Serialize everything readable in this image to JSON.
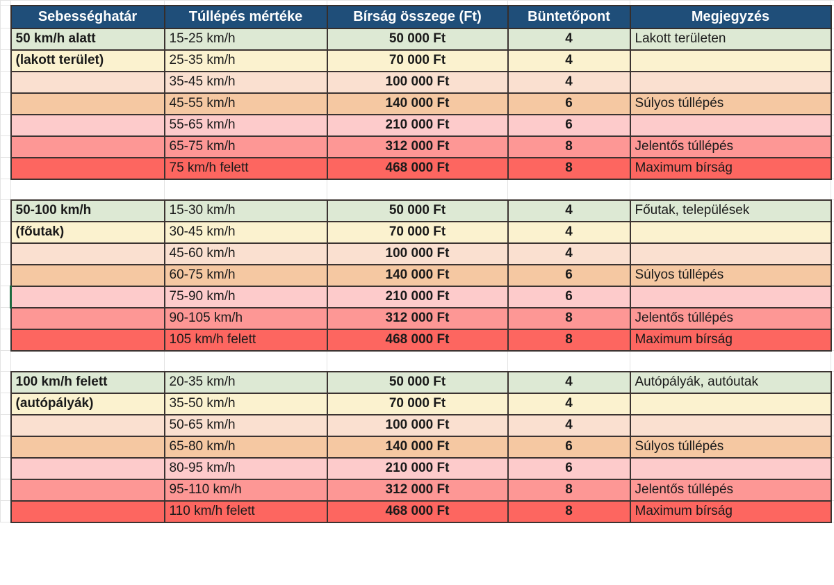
{
  "table": {
    "columns": [
      {
        "label": "Sebességhatár"
      },
      {
        "label": "Túllépés mértéke"
      },
      {
        "label": "Bírság összege (Ft)"
      },
      {
        "label": "Büntetőpont"
      },
      {
        "label": "Megjegyzés"
      }
    ],
    "palette": {
      "header_bg": "#1F4E79",
      "header_text": "#FFFFFF",
      "row_colors": [
        "#DDE9D4",
        "#FBF2CF",
        "#FAE0D0",
        "#F5C8A2",
        "#FDCBCB",
        "#FD9795",
        "#FD6660"
      ],
      "border_dark": "#3B3331",
      "gridline": "#E3E3E3",
      "selection_green": "#1E6B41"
    },
    "sections": [
      {
        "limit_line1": "50 km/h alatt",
        "limit_line2": "(lakott terület)",
        "rows": [
          {
            "range": "15-25 km/h",
            "fine": "50 000 Ft",
            "points": "4",
            "note": "Lakott területen"
          },
          {
            "range": "25-35 km/h",
            "fine": "70 000 Ft",
            "points": "4",
            "note": ""
          },
          {
            "range": "35-45 km/h",
            "fine": "100 000 Ft",
            "points": "4",
            "note": ""
          },
          {
            "range": "45-55 km/h",
            "fine": "140 000 Ft",
            "points": "6",
            "note": "Súlyos túllépés"
          },
          {
            "range": "55-65 km/h",
            "fine": "210 000 Ft",
            "points": "6",
            "note": ""
          },
          {
            "range": "65-75 km/h",
            "fine": "312 000 Ft",
            "points": "8",
            "note": "Jelentős túllépés"
          },
          {
            "range": "75 km/h felett",
            "fine": "468 000 Ft",
            "points": "8",
            "note": "Maximum bírság"
          }
        ]
      },
      {
        "limit_line1": "50-100 km/h",
        "limit_line2": "(főutak)",
        "rows": [
          {
            "range": "15-30 km/h",
            "fine": "50 000 Ft",
            "points": "4",
            "note": "Főutak, települések"
          },
          {
            "range": "30-45 km/h",
            "fine": "70 000 Ft",
            "points": "4",
            "note": ""
          },
          {
            "range": "45-60 km/h",
            "fine": "100 000 Ft",
            "points": "4",
            "note": ""
          },
          {
            "range": "60-75 km/h",
            "fine": "140 000 Ft",
            "points": "6",
            "note": "Súlyos túllépés"
          },
          {
            "range": "75-90 km/h",
            "fine": "210 000 Ft",
            "points": "6",
            "note": ""
          },
          {
            "range": "90-105 km/h",
            "fine": "312 000 Ft",
            "points": "8",
            "note": "Jelentős túllépés"
          },
          {
            "range": "105 km/h felett",
            "fine": "468 000 Ft",
            "points": "8",
            "note": "Maximum bírság"
          }
        ]
      },
      {
        "limit_line1": "100 km/h felett",
        "limit_line2": "(autópályák)",
        "rows": [
          {
            "range": "20-35 km/h",
            "fine": "50 000 Ft",
            "points": "4",
            "note": "Autópályák, autóutak"
          },
          {
            "range": "35-50 km/h",
            "fine": "70 000 Ft",
            "points": "4",
            "note": ""
          },
          {
            "range": "50-65 km/h",
            "fine": "100 000 Ft",
            "points": "4",
            "note": ""
          },
          {
            "range": "65-80 km/h",
            "fine": "140 000 Ft",
            "points": "6",
            "note": "Súlyos túllépés"
          },
          {
            "range": "80-95 km/h",
            "fine": "210 000 Ft",
            "points": "6",
            "note": ""
          },
          {
            "range": "95-110 km/h",
            "fine": "312 000 Ft",
            "points": "8",
            "note": "Jelentős túllépés"
          },
          {
            "range": "110 km/h felett",
            "fine": "468 000 Ft",
            "points": "8",
            "note": "Maximum bírság"
          }
        ]
      }
    ],
    "selection": {
      "section_index": 1,
      "row_index": 4
    }
  }
}
